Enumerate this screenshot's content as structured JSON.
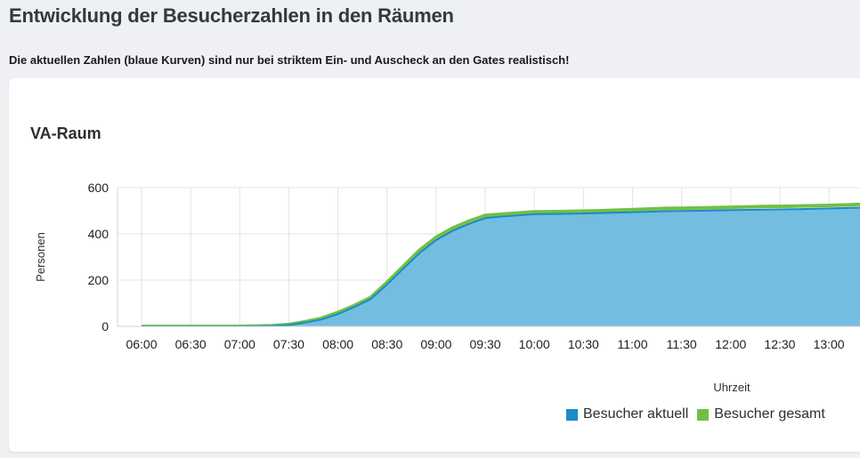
{
  "page": {
    "title": "Entwicklung der Besucherzahlen in den Räumen",
    "note": "Die aktuellen Zahlen (blaue Kurven) sind nur bei striktem Ein- und Auscheck an den Gates realistisch!"
  },
  "chart_data": {
    "type": "area",
    "title": "VA-Raum",
    "xlabel": "Uhrzeit",
    "ylabel": "Personen",
    "ylim": [
      0,
      600
    ],
    "yticks": [
      "0",
      "200",
      "400",
      "600"
    ],
    "x_ticks": [
      "06:00",
      "06:30",
      "07:00",
      "07:30",
      "08:00",
      "08:30",
      "09:00",
      "09:30",
      "10:00",
      "10:30",
      "11:00",
      "11:30",
      "12:00",
      "12:30",
      "13:00"
    ],
    "x": [
      "06:00",
      "06:15",
      "06:30",
      "06:45",
      "07:00",
      "07:10",
      "07:20",
      "07:30",
      "07:40",
      "07:50",
      "08:00",
      "08:10",
      "08:20",
      "08:30",
      "08:40",
      "08:50",
      "09:00",
      "09:10",
      "09:20",
      "09:30",
      "09:40",
      "10:00",
      "10:20",
      "10:40",
      "11:00",
      "11:20",
      "11:40",
      "12:00",
      "12:20",
      "12:40",
      "13:00",
      "13:10",
      "13:20"
    ],
    "grid": true,
    "legend_position": "bottom-right",
    "series": [
      {
        "name": "Besucher gesamt",
        "color": "#72c043",
        "values": [
          0,
          0,
          0,
          0,
          0,
          1,
          3,
          8,
          20,
          35,
          60,
          90,
          125,
          190,
          260,
          330,
          385,
          425,
          455,
          480,
          485,
          495,
          497,
          500,
          505,
          510,
          512,
          515,
          518,
          520,
          523,
          525,
          528
        ]
      },
      {
        "name": "Besucher aktuell",
        "color": "#1a8cc7",
        "fill": "#73bde0",
        "values": [
          0,
          0,
          0,
          0,
          0,
          1,
          2,
          6,
          16,
          30,
          53,
          84,
          118,
          181,
          250,
          318,
          373,
          413,
          443,
          468,
          475,
          485,
          487,
          490,
          494,
          498,
          500,
          503,
          505,
          507,
          510,
          512,
          514
        ]
      }
    ],
    "legend": [
      {
        "label": "Besucher aktuell",
        "color": "#1a8cc7"
      },
      {
        "label": "Besucher gesamt",
        "color": "#72c043"
      }
    ]
  }
}
